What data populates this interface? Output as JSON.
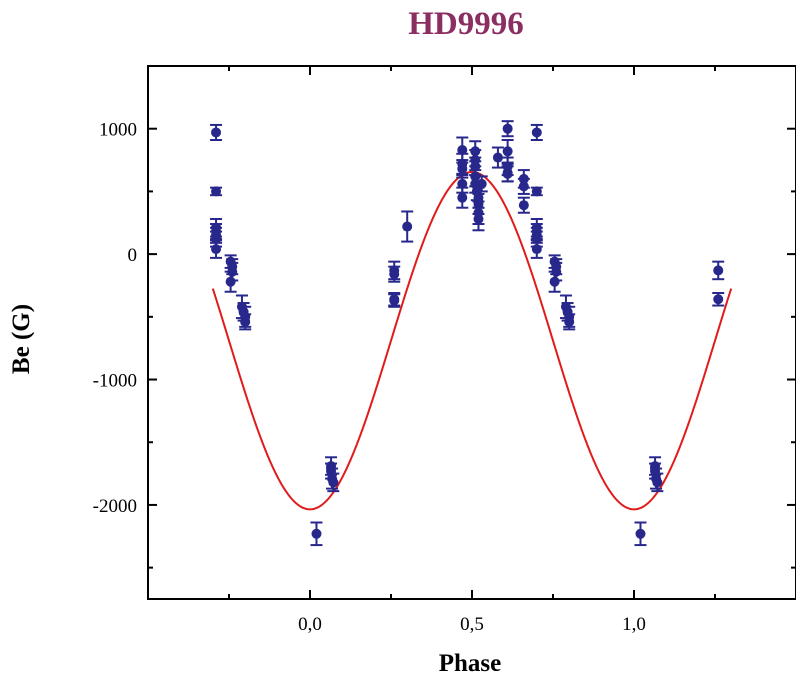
{
  "chart_data": {
    "type": "scatter",
    "title": "HD9996",
    "xlabel": "Phase",
    "ylabel": "Be (G)",
    "xlim": [
      -0.5,
      1.5
    ],
    "ylim": [
      -2750,
      1500
    ],
    "x_ticks": [
      0.0,
      0.5,
      1.0
    ],
    "x_tick_labels": [
      "0,0",
      "0,5",
      "1,0"
    ],
    "x_minor_ticks": [
      -0.25,
      0.25,
      0.75,
      1.25
    ],
    "y_ticks": [
      -2000,
      -1000,
      0,
      1000
    ],
    "y_tick_labels": [
      "-2000",
      "-1000",
      "0",
      "1000"
    ],
    "y_minor_ticks": [
      -2500,
      -1500,
      -500,
      500
    ],
    "grid": false,
    "colors": {
      "title": "#8b2f62",
      "points": "#28288c",
      "fit": "#e11b1b",
      "axis": "#000000"
    },
    "series": [
      {
        "type": "scatter_errorbar",
        "points": [
          {
            "x": -0.29,
            "y": 970,
            "err": 60
          },
          {
            "x": -0.29,
            "y": 500,
            "err": 30
          },
          {
            "x": -0.29,
            "y": 210,
            "err": 70
          },
          {
            "x": -0.29,
            "y": 180,
            "err": 60
          },
          {
            "x": -0.29,
            "y": 150,
            "err": 60
          },
          {
            "x": -0.29,
            "y": 120,
            "err": 60
          },
          {
            "x": -0.29,
            "y": 40,
            "err": 70
          },
          {
            "x": -0.245,
            "y": -60,
            "err": 50
          },
          {
            "x": -0.24,
            "y": -100,
            "err": 60
          },
          {
            "x": -0.24,
            "y": -140,
            "err": 70
          },
          {
            "x": -0.245,
            "y": -220,
            "err": 80
          },
          {
            "x": -0.21,
            "y": -420,
            "err": 90
          },
          {
            "x": -0.205,
            "y": -460,
            "err": 70
          },
          {
            "x": -0.2,
            "y": -500,
            "err": 80
          },
          {
            "x": -0.2,
            "y": -540,
            "err": 60
          },
          {
            "x": 0.02,
            "y": -2230,
            "err": 90
          },
          {
            "x": 0.065,
            "y": -1690,
            "err": 70
          },
          {
            "x": 0.065,
            "y": -1730,
            "err": 60
          },
          {
            "x": 0.068,
            "y": -1790,
            "err": 80
          },
          {
            "x": 0.072,
            "y": -1820,
            "err": 70
          },
          {
            "x": 0.26,
            "y": -130,
            "err": 70
          },
          {
            "x": 0.26,
            "y": -160,
            "err": 60
          },
          {
            "x": 0.26,
            "y": -360,
            "err": 50
          },
          {
            "x": 0.26,
            "y": -370,
            "err": 50
          },
          {
            "x": 0.3,
            "y": 220,
            "err": 120
          },
          {
            "x": 0.47,
            "y": 830,
            "err": 100
          },
          {
            "x": 0.47,
            "y": 720,
            "err": 80
          },
          {
            "x": 0.47,
            "y": 680,
            "err": 70
          },
          {
            "x": 0.47,
            "y": 560,
            "err": 70
          },
          {
            "x": 0.47,
            "y": 450,
            "err": 80
          },
          {
            "x": 0.51,
            "y": 820,
            "err": 80
          },
          {
            "x": 0.51,
            "y": 750,
            "err": 80
          },
          {
            "x": 0.51,
            "y": 700,
            "err": 70
          },
          {
            "x": 0.51,
            "y": 620,
            "err": 80
          },
          {
            "x": 0.51,
            "y": 560,
            "err": 70
          },
          {
            "x": 0.515,
            "y": 500,
            "err": 70
          },
          {
            "x": 0.52,
            "y": 450,
            "err": 80
          },
          {
            "x": 0.52,
            "y": 400,
            "err": 80
          },
          {
            "x": 0.52,
            "y": 330,
            "err": 90
          },
          {
            "x": 0.52,
            "y": 280,
            "err": 90
          },
          {
            "x": 0.53,
            "y": 560,
            "err": 60
          },
          {
            "x": 0.58,
            "y": 770,
            "err": 80
          },
          {
            "x": 0.61,
            "y": 1000,
            "err": 60
          },
          {
            "x": 0.61,
            "y": 820,
            "err": 90
          },
          {
            "x": 0.61,
            "y": 700,
            "err": 70
          },
          {
            "x": 0.61,
            "y": 650,
            "err": 70
          },
          {
            "x": 0.61,
            "y": 640,
            "err": 60
          },
          {
            "x": 0.66,
            "y": 600,
            "err": 70
          },
          {
            "x": 0.66,
            "y": 540,
            "err": 60
          },
          {
            "x": 0.66,
            "y": 390,
            "err": 60
          },
          {
            "x": 0.7,
            "y": 970,
            "err": 60
          },
          {
            "x": 0.7,
            "y": 500,
            "err": 30
          },
          {
            "x": 0.7,
            "y": 210,
            "err": 70
          },
          {
            "x": 0.7,
            "y": 180,
            "err": 60
          },
          {
            "x": 0.7,
            "y": 150,
            "err": 60
          },
          {
            "x": 0.7,
            "y": 120,
            "err": 60
          },
          {
            "x": 0.7,
            "y": 40,
            "err": 70
          },
          {
            "x": 0.755,
            "y": -60,
            "err": 50
          },
          {
            "x": 0.76,
            "y": -100,
            "err": 60
          },
          {
            "x": 0.76,
            "y": -140,
            "err": 70
          },
          {
            "x": 0.755,
            "y": -220,
            "err": 80
          },
          {
            "x": 0.79,
            "y": -420,
            "err": 90
          },
          {
            "x": 0.795,
            "y": -460,
            "err": 70
          },
          {
            "x": 0.8,
            "y": -500,
            "err": 80
          },
          {
            "x": 0.8,
            "y": -540,
            "err": 60
          },
          {
            "x": 1.02,
            "y": -2230,
            "err": 90
          },
          {
            "x": 1.065,
            "y": -1690,
            "err": 70
          },
          {
            "x": 1.065,
            "y": -1730,
            "err": 60
          },
          {
            "x": 1.068,
            "y": -1790,
            "err": 80
          },
          {
            "x": 1.072,
            "y": -1820,
            "err": 70
          },
          {
            "x": 1.26,
            "y": -130,
            "err": 70
          },
          {
            "x": 1.26,
            "y": -360,
            "err": 50
          }
        ]
      },
      {
        "type": "fit_curve",
        "model": "mean + amplitude * cos(2*pi*(phase - phase_min))",
        "mean": -690,
        "amplitude": -1345,
        "phase_min": 0.0,
        "x_range": [
          -0.3,
          1.3
        ]
      }
    ]
  }
}
